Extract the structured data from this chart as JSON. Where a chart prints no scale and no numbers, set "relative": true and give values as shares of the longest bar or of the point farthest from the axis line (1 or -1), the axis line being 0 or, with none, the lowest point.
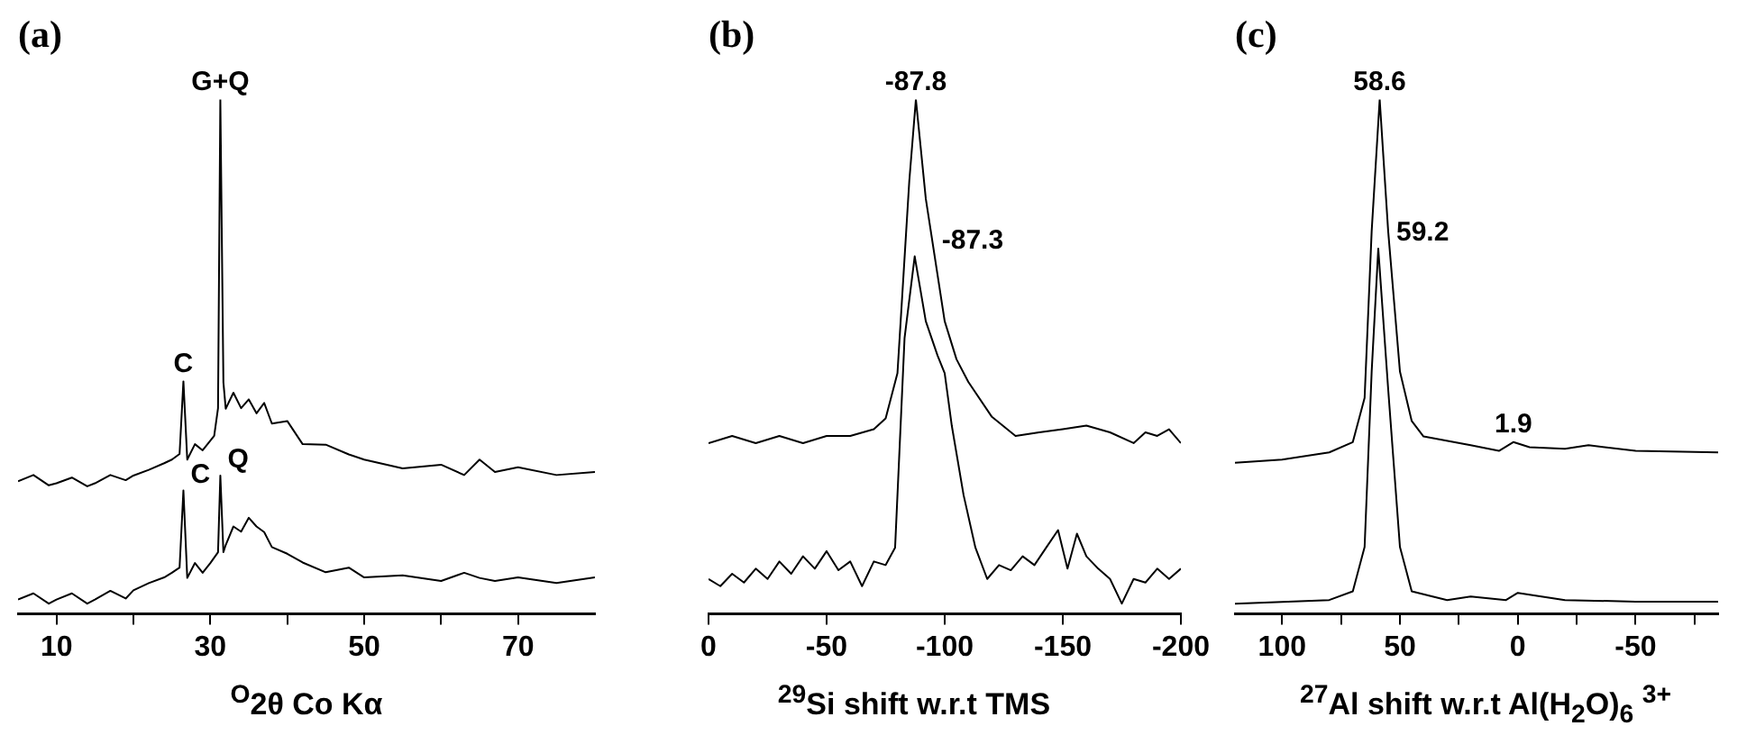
{
  "chart_data": [
    {
      "type": "line",
      "title": "(a)",
      "xlabel": "$^{O}$2θ Co Kα",
      "relative": true,
      "xlim": [
        5,
        80
      ],
      "xticks": [
        10,
        {
          "value": 20,
          "label": null
        },
        30,
        {
          "value": 40,
          "label": null
        },
        50,
        {
          "value": 60,
          "label": null
        },
        70
      ],
      "tick_labels": "x",
      "legend": false,
      "grid": false,
      "marker": "none",
      "line_style": "solid",
      "annotations": [
        {
          "text": "G+Q",
          "x": 31.3,
          "y": 1
        },
        {
          "text": "C",
          "x": 26.5,
          "y": 0.452
        },
        {
          "text": "C",
          "x": 26.5,
          "y": 0.24
        },
        {
          "text": "Q",
          "x": 31.3,
          "y": 0.269
        }
      ],
      "series": [
        {
          "color": "#000000",
          "x": [
            5,
            7,
            9,
            10,
            12,
            14,
            15,
            17,
            19,
            20,
            22,
            24,
            25,
            26,
            26.5,
            27,
            28,
            29,
            30.5,
            31,
            31.3,
            31.7,
            32,
            33,
            34,
            35,
            36,
            37,
            38,
            40,
            42,
            45,
            48,
            50,
            55,
            60,
            63,
            65,
            67,
            70,
            75,
            80
          ],
          "values": [
            0.258,
            0.27,
            0.25,
            0.254,
            0.265,
            0.248,
            0.254,
            0.27,
            0.26,
            0.269,
            0.28,
            0.293,
            0.3,
            0.311,
            0.452,
            0.3,
            0.33,
            0.318,
            0.346,
            0.4,
            1,
            0.45,
            0.399,
            0.43,
            0.4,
            0.417,
            0.39,
            0.41,
            0.37,
            0.375,
            0.33,
            0.329,
            0.31,
            0.3,
            0.283,
            0.29,
            0.27,
            0.3,
            0.276,
            0.285,
            0.27,
            0.276
          ]
        },
        {
          "color": "#000000",
          "x": [
            5,
            7,
            9,
            10,
            12,
            14,
            15,
            17,
            19,
            20,
            22,
            24,
            25,
            26,
            26.5,
            27,
            28,
            29,
            30,
            31,
            31.3,
            31.7,
            32,
            33,
            34,
            35,
            36,
            37,
            38,
            40,
            42,
            45,
            48,
            50,
            55,
            60,
            63,
            65,
            67,
            70,
            75,
            80
          ],
          "values": [
            0.028,
            0.04,
            0.02,
            0.028,
            0.04,
            0.02,
            0.028,
            0.045,
            0.03,
            0.046,
            0.06,
            0.071,
            0.08,
            0.09,
            0.24,
            0.07,
            0.099,
            0.08,
            0.099,
            0.12,
            0.269,
            0.12,
            0.134,
            0.17,
            0.16,
            0.187,
            0.17,
            0.159,
            0.13,
            0.117,
            0.1,
            0.081,
            0.09,
            0.071,
            0.075,
            0.064,
            0.08,
            0.07,
            0.064,
            0.071,
            0.06,
            0.071
          ]
        }
      ]
    },
    {
      "type": "line",
      "title": "(b)",
      "xlabel": "$^{29}$Si shift w.r.t TMS",
      "relative": true,
      "xlim": [
        0,
        -200
      ],
      "xticks": [
        0,
        -50,
        -100,
        -150,
        -200
      ],
      "tick_labels": "x",
      "legend": false,
      "grid": false,
      "marker": "none",
      "line_style": "solid",
      "annotations": [
        {
          "text": "-87.8",
          "x": -87.8,
          "y": 1
        },
        {
          "text": "-87.3",
          "x": -87.3,
          "y": 0.695
        }
      ],
      "series": [
        {
          "color": "#000000",
          "x": [
            0,
            -10,
            -20,
            -30,
            -40,
            -50,
            -60,
            -70,
            -75,
            -80,
            -85,
            -87.8,
            -92,
            -100,
            -105,
            -110,
            -120,
            -130,
            -140,
            -150,
            -160,
            -170,
            -180,
            -185,
            -190,
            -195,
            -200
          ],
          "values": [
            0.332,
            0.346,
            0.332,
            0.346,
            0.332,
            0.346,
            0.346,
            0.359,
            0.38,
            0.468,
            0.841,
            1,
            0.807,
            0.569,
            0.495,
            0.451,
            0.383,
            0.346,
            0.353,
            0.359,
            0.366,
            0.353,
            0.332,
            0.353,
            0.346,
            0.359,
            0.332
          ]
        },
        {
          "color": "#000000",
          "x": [
            0,
            -5,
            -10,
            -15,
            -20,
            -25,
            -30,
            -35,
            -40,
            -45,
            -50,
            -55,
            -60,
            -65,
            -70,
            -75,
            -79,
            -83,
            -87.3,
            -92,
            -97,
            -100,
            -103,
            -108,
            -113,
            -118,
            -123,
            -128,
            -133,
            -138,
            -143,
            -148,
            -152,
            -156,
            -160,
            -165,
            -170,
            -175,
            -180,
            -185,
            -190,
            -195,
            -200
          ],
          "values": [
            0.068,
            0.054,
            0.078,
            0.061,
            0.088,
            0.068,
            0.102,
            0.078,
            0.112,
            0.088,
            0.122,
            0.085,
            0.102,
            0.054,
            0.102,
            0.095,
            0.129,
            0.536,
            0.695,
            0.569,
            0.502,
            0.468,
            0.366,
            0.231,
            0.129,
            0.068,
            0.095,
            0.085,
            0.112,
            0.095,
            0.129,
            0.163,
            0.088,
            0.156,
            0.112,
            0.088,
            0.068,
            0.02,
            0.068,
            0.061,
            0.088,
            0.068,
            0.088
          ]
        }
      ]
    },
    {
      "type": "line",
      "title": "(c)",
      "xlabel": "$^{27}$Al shift w.r.t Al(H$_{2}$O)$_{6}$ $^{3+}$",
      "relative": true,
      "xlim": [
        120,
        -85
      ],
      "xticks": [
        100,
        {
          "value": 75,
          "label": null
        },
        50,
        {
          "value": 25,
          "label": null
        },
        0,
        {
          "value": -25,
          "label": null
        },
        -50,
        {
          "value": -75,
          "label": null
        }
      ],
      "tick_labels": "x",
      "legend": false,
      "grid": false,
      "marker": "none",
      "line_style": "solid",
      "annotations": [
        {
          "text": "58.6",
          "x": 58.6,
          "y": 1
        },
        {
          "text": "59.2",
          "x": 59.2,
          "y": 0.71
        },
        {
          "text": "1.9",
          "x": 1.9,
          "y": 0.334
        }
      ],
      "series": [
        {
          "color": "#000000",
          "x": [
            120,
            100,
            80,
            70,
            65,
            62,
            58.6,
            55,
            50,
            45,
            40,
            20,
            8,
            1.9,
            -5,
            -20,
            -30,
            -50,
            -85
          ],
          "values": [
            0.294,
            0.3,
            0.314,
            0.334,
            0.42,
            0.744,
            1,
            0.744,
            0.471,
            0.375,
            0.345,
            0.328,
            0.317,
            0.334,
            0.324,
            0.321,
            0.328,
            0.317,
            0.314
          ]
        },
        {
          "color": "#000000",
          "x": [
            120,
            80,
            70,
            65,
            62,
            59.2,
            55,
            50,
            45,
            30,
            20,
            5,
            0,
            -10,
            -20,
            -50,
            -85
          ],
          "values": [
            0.02,
            0.027,
            0.044,
            0.13,
            0.471,
            0.71,
            0.437,
            0.13,
            0.044,
            0.027,
            0.034,
            0.027,
            0.041,
            0.034,
            0.027,
            0.024,
            0.024
          ]
        }
      ]
    }
  ]
}
